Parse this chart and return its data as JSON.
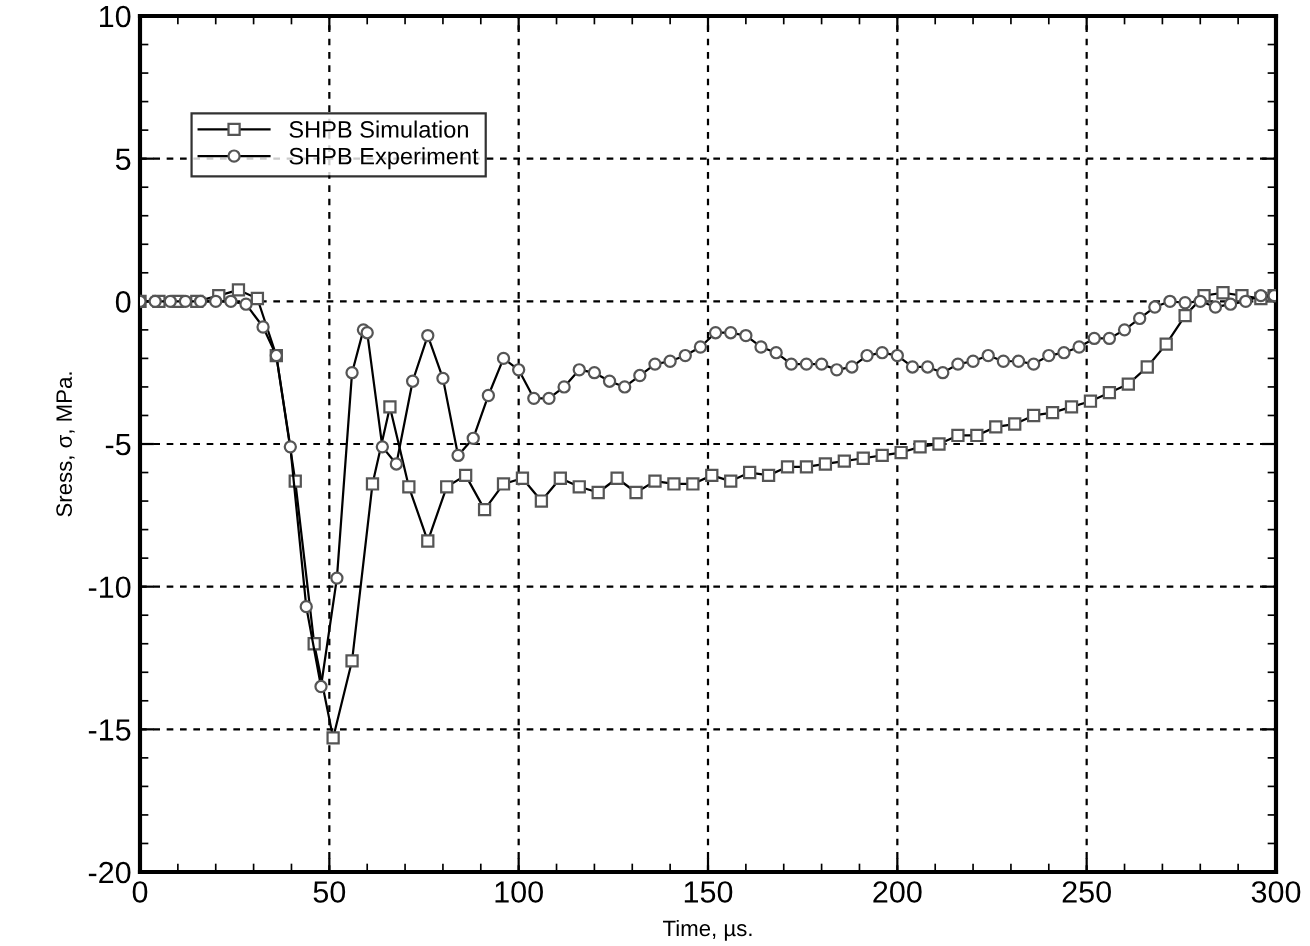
{
  "chart_data": {
    "type": "line",
    "xlabel": "Time, µs.",
    "ylabel": "Sress, σ, MPa.",
    "xlim": [
      0,
      300
    ],
    "xticks": [
      0,
      50,
      100,
      150,
      200,
      250,
      300
    ],
    "ylim": [
      -20,
      10
    ],
    "yticks": [
      -20,
      -15,
      -10,
      -5,
      0,
      5,
      10
    ],
    "grid": true,
    "legend": "top left",
    "line_style": "solid",
    "series": [
      {
        "name": "SHPB Simulation",
        "color": "#000000",
        "marker": "square",
        "x": [
          0,
          5,
          10,
          15,
          20.8,
          26,
          31,
          36,
          41,
          46,
          51,
          56,
          61.4,
          66,
          71,
          76,
          81,
          86,
          91,
          96,
          101,
          106,
          111,
          116,
          121,
          126,
          131,
          136,
          141,
          146,
          151,
          156,
          161,
          166,
          171,
          176,
          181,
          186,
          191,
          196,
          201,
          206,
          211,
          216,
          221,
          226,
          231,
          236,
          241,
          246,
          251,
          256,
          261,
          266,
          271,
          276,
          281,
          286,
          291,
          296,
          299.5
        ],
        "values": [
          0,
          0,
          0,
          0,
          0.2,
          0.4,
          0.1,
          -1.9,
          -6.3,
          -12,
          -15.3,
          -12.6,
          -6.4,
          -3.7,
          -6.5,
          -8.4,
          -6.5,
          -6.1,
          -7.3,
          -6.4,
          -6.2,
          -7.0,
          -6.2,
          -6.5,
          -6.7,
          -6.2,
          -6.7,
          -6.3,
          -6.4,
          -6.4,
          -6.1,
          -6.3,
          -6.0,
          -6.1,
          -5.8,
          -5.8,
          -5.7,
          -5.6,
          -5.5,
          -5.4,
          -5.3,
          -5.1,
          -5.0,
          -4.7,
          -4.7,
          -4.4,
          -4.3,
          -4.0,
          -3.9,
          -3.7,
          -3.5,
          -3.2,
          -2.9,
          -2.3,
          -1.5,
          -0.5,
          0.2,
          0.3,
          0.2,
          0.1,
          0.2
        ]
      },
      {
        "name": "SHPB Experiment",
        "color": "#000000",
        "marker": "circle",
        "x": [
          0,
          4,
          8,
          12,
          16,
          20,
          24,
          28,
          32.5,
          36,
          39.7,
          43.9,
          47.8,
          52,
          56,
          59,
          60,
          64,
          67.7,
          72,
          76,
          80,
          84,
          88,
          92,
          96,
          100,
          104,
          108,
          112,
          116,
          120,
          124,
          128,
          132,
          136,
          140,
          144,
          148,
          152,
          156,
          160,
          164,
          168,
          172,
          176,
          180,
          184,
          188,
          192,
          196,
          200,
          204,
          208,
          212,
          216,
          220,
          224,
          228,
          232,
          236,
          240,
          244,
          248,
          252,
          256,
          260,
          264,
          268,
          272,
          276,
          280,
          284,
          288,
          292,
          296,
          299.5
        ],
        "values": [
          0,
          0,
          0,
          0,
          0,
          0,
          0,
          -0.1,
          -0.9,
          -1.9,
          -5.1,
          -10.7,
          -13.5,
          -9.7,
          -2.5,
          -1.0,
          -1.1,
          -5.1,
          -5.7,
          -2.8,
          -1.2,
          -2.7,
          -5.4,
          -4.8,
          -3.3,
          -2.0,
          -2.4,
          -3.4,
          -3.4,
          -3.0,
          -2.4,
          -2.5,
          -2.8,
          -3.0,
          -2.6,
          -2.2,
          -2.1,
          -1.9,
          -1.6,
          -1.1,
          -1.1,
          -1.2,
          -1.6,
          -1.8,
          -2.2,
          -2.2,
          -2.2,
          -2.4,
          -2.3,
          -1.9,
          -1.8,
          -1.9,
          -2.3,
          -2.3,
          -2.5,
          -2.2,
          -2.1,
          -1.9,
          -2.1,
          -2.1,
          -2.2,
          -1.9,
          -1.8,
          -1.6,
          -1.3,
          -1.3,
          -1.0,
          -0.6,
          -0.2,
          0,
          -0.05,
          0,
          -0.2,
          -0.1,
          0,
          0.2,
          0.2
        ]
      }
    ]
  }
}
